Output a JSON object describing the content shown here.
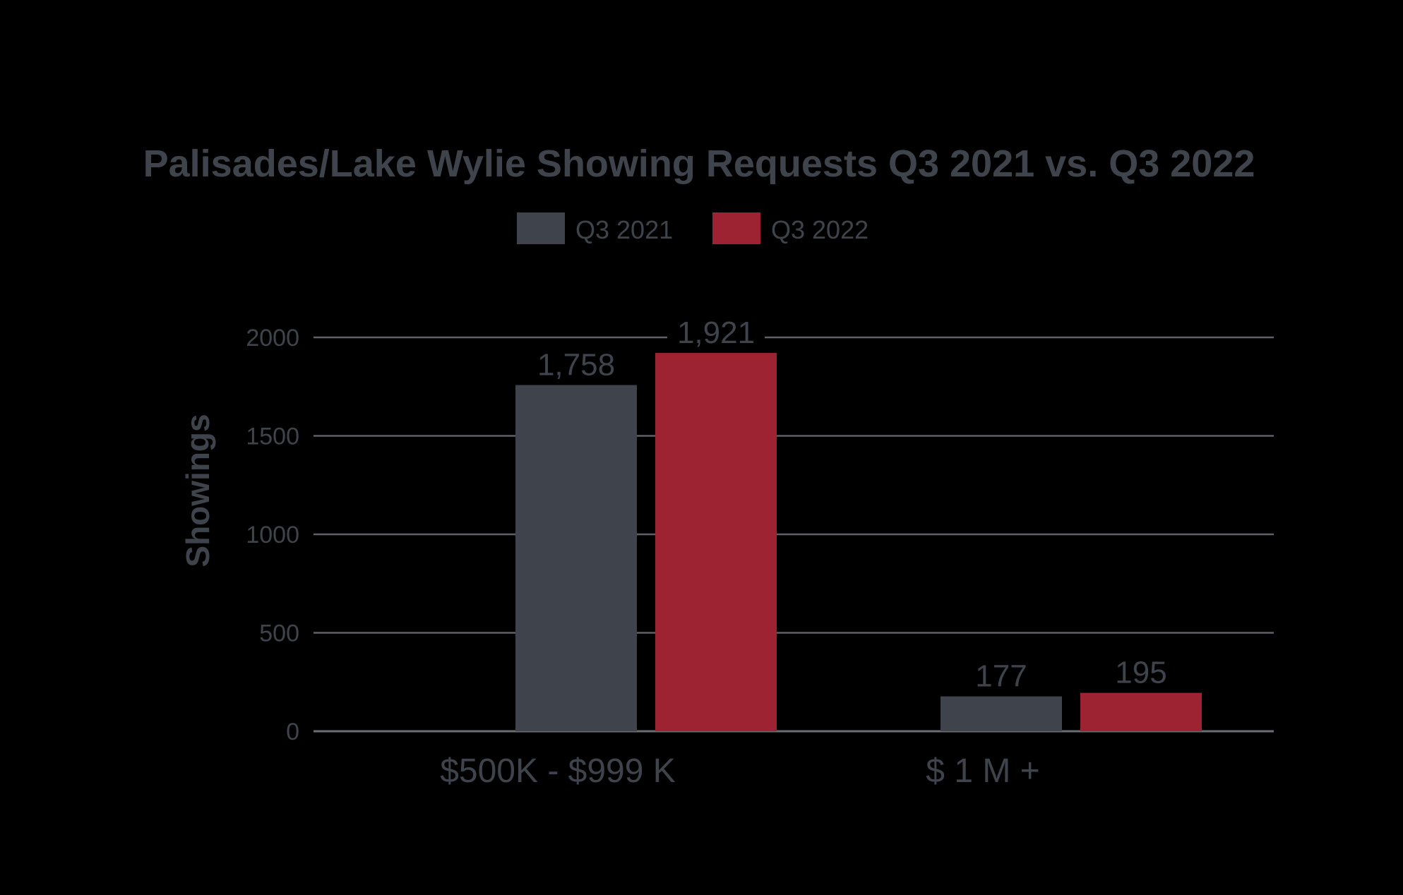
{
  "colors": {
    "background": "#000000",
    "text": "#3f444c",
    "grid": "#5e6168",
    "zero_line": "#6b6e75"
  },
  "chart_data": {
    "type": "bar",
    "title": "Palisades/Lake Wylie Showing Requests Q3 2021 vs. Q3 2022",
    "ylabel": "Showings",
    "xlabel": "",
    "categories": [
      "$500K - $999 K",
      "$ 1 M +"
    ],
    "series": [
      {
        "name": "Q3 2021",
        "color": "#3f444c",
        "values": [
          1758,
          177
        ],
        "labels": [
          "1,758",
          "177"
        ]
      },
      {
        "name": "Q3 2022",
        "color": "#9e2332",
        "values": [
          1921,
          195
        ],
        "labels": [
          "1,921",
          "195"
        ]
      }
    ],
    "ylim": [
      0,
      2000
    ],
    "yticks": [
      0,
      500,
      1000,
      1500,
      2000
    ],
    "ytick_labels": [
      "0",
      "500",
      "1000",
      "1500",
      "2000"
    ],
    "grid": true,
    "legend_position": "top-center"
  }
}
